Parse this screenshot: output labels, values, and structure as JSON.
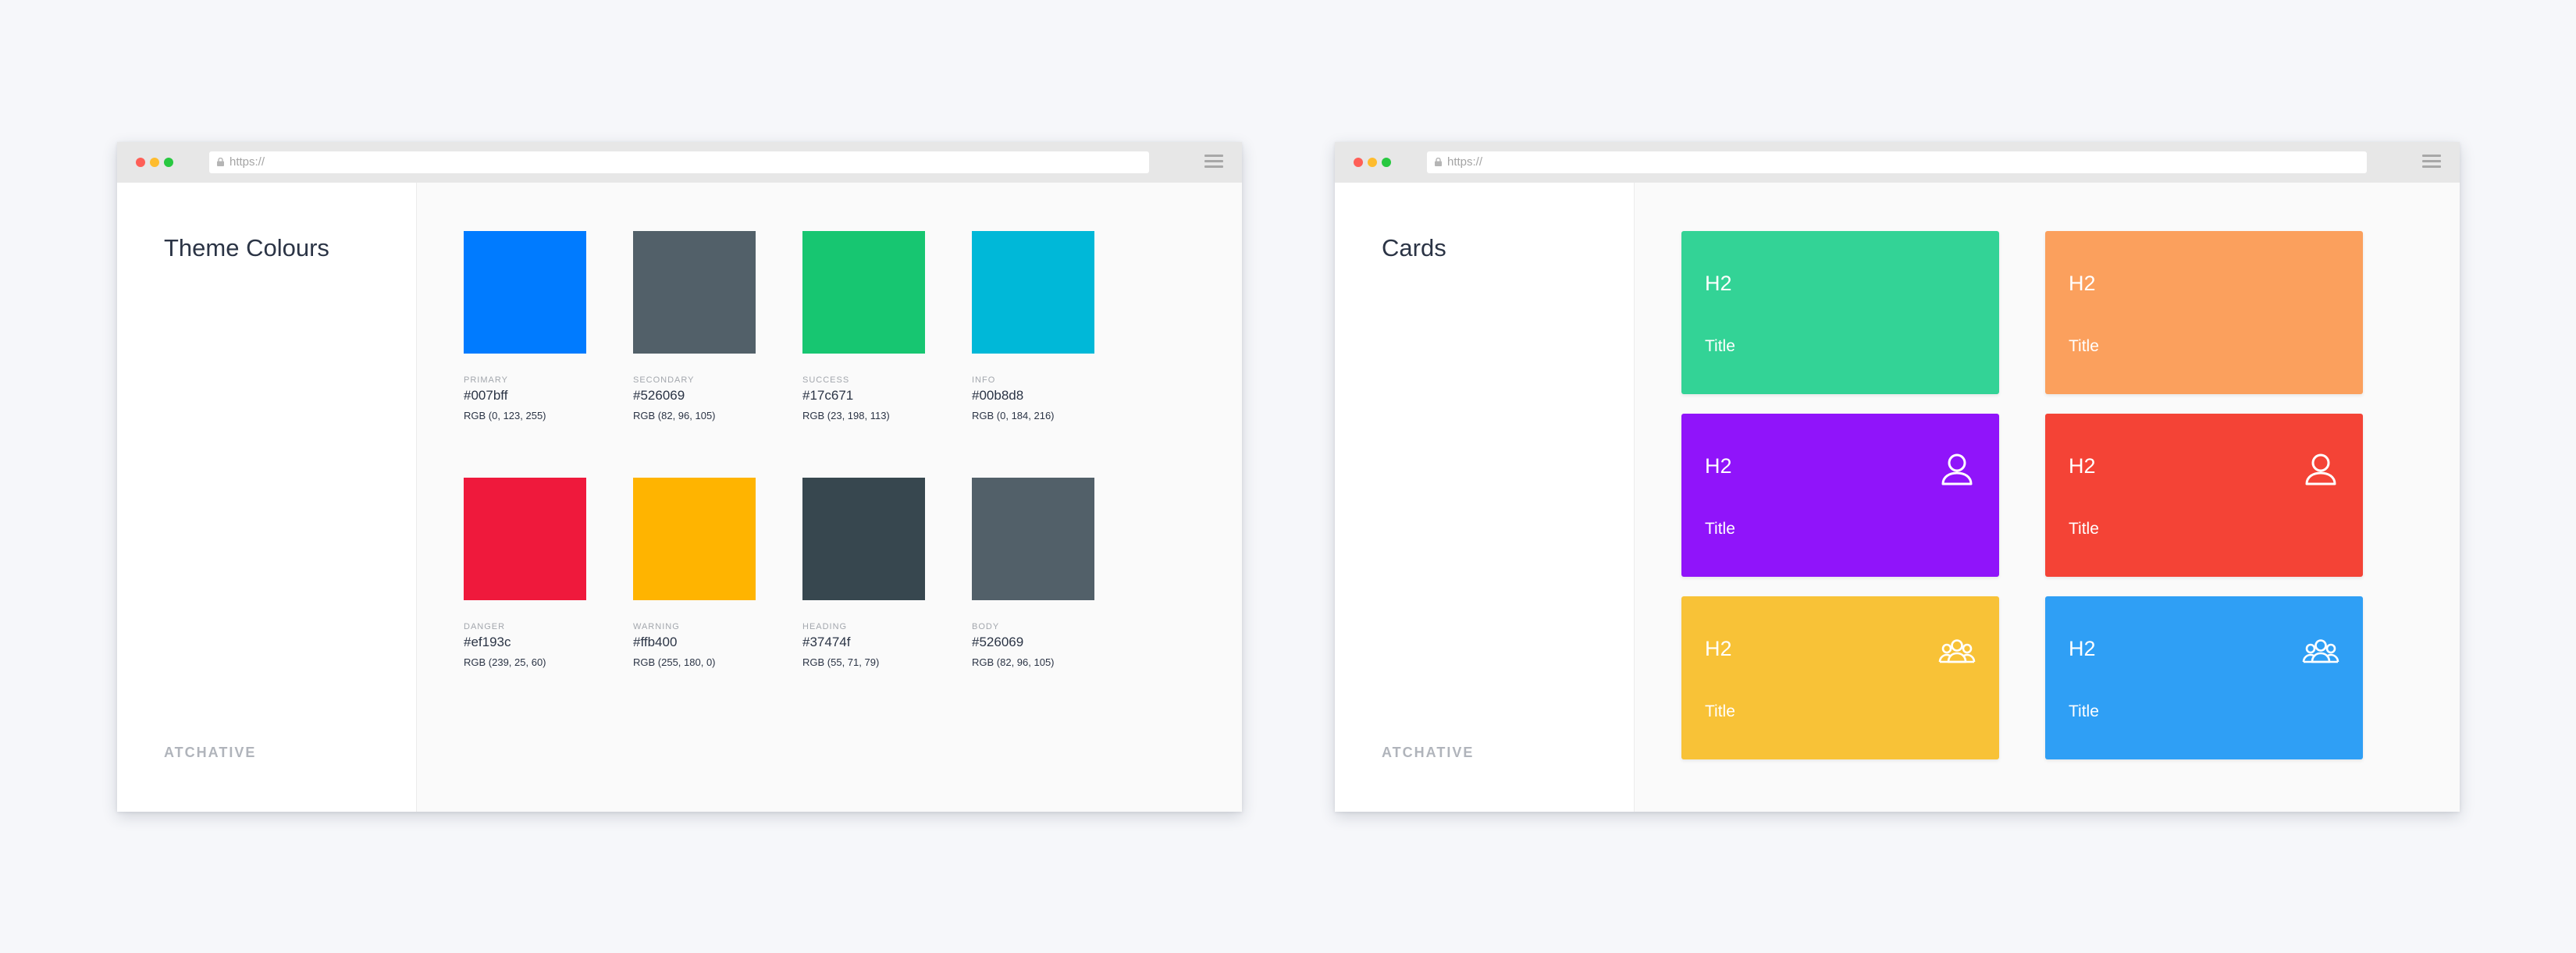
{
  "windows": {
    "left": {
      "url": "https://",
      "title": "Theme Colours",
      "brand": "ATCHATIVE",
      "swatches": [
        {
          "label": "PRIMARY",
          "hex": "#007bff",
          "rgb": "RGB (0, 123, 255)",
          "color": "#007bff"
        },
        {
          "label": "SECONDARY",
          "hex": "#526069",
          "rgb": "RGB (82, 96, 105)",
          "color": "#526069"
        },
        {
          "label": "SUCCESS",
          "hex": "#17c671",
          "rgb": "RGB (23, 198, 113)",
          "color": "#17c671"
        },
        {
          "label": "INFO",
          "hex": "#00b8d8",
          "rgb": "RGB (0, 184, 216)",
          "color": "#00b8d8"
        },
        {
          "label": "DANGER",
          "hex": "#ef193c",
          "rgb": "RGB (239, 25, 60)",
          "color": "#ef193c"
        },
        {
          "label": "WARNING",
          "hex": "#ffb400",
          "rgb": "RGB (255, 180, 0)",
          "color": "#ffb400"
        },
        {
          "label": "HEADING",
          "hex": "#37474f",
          "rgb": "RGB (55, 71, 79)",
          "color": "#37474f"
        },
        {
          "label": "BODY",
          "hex": "#526069",
          "rgb": "RGB (82, 96, 105)",
          "color": "#526069"
        }
      ]
    },
    "right": {
      "url": "https://",
      "title": "Cards",
      "brand": "ATCHATIVE",
      "cards": [
        {
          "heading": "H2",
          "title": "Title",
          "color": "#33d396",
          "icon": "none"
        },
        {
          "heading": "H2",
          "title": "Title",
          "color": "#fba05d",
          "icon": "none"
        },
        {
          "heading": "H2",
          "title": "Title",
          "color": "#9014fa",
          "icon": "user-icon"
        },
        {
          "heading": "H2",
          "title": "Title",
          "color": "#f44336",
          "icon": "user-icon"
        },
        {
          "heading": "H2",
          "title": "Title",
          "color": "#f8c237",
          "icon": "users-group-icon"
        },
        {
          "heading": "H2",
          "title": "Title",
          "color": "#2f9ff5",
          "icon": "users-group-icon"
        }
      ]
    }
  }
}
